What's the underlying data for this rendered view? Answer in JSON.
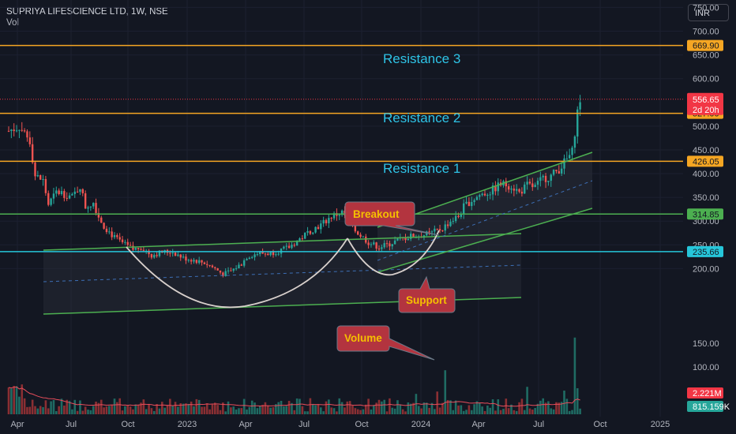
{
  "header": {
    "title": "SUPRIYA LIFESCIENCE LTD, 1W, NSE",
    "sub": "Vol",
    "currency": "INR"
  },
  "annotations": {
    "resistance": [
      "Resistance 3",
      "Resistance 2",
      "Resistance 1"
    ],
    "breakout": "Breakout",
    "support": "Support",
    "volume": "Volume"
  },
  "chart_data": {
    "type": "candlestick",
    "title": "SUPRIYA LIFESCIENCE LTD, 1W, NSE",
    "ylim": [
      150,
      775
    ],
    "y_ticks": [
      "750.00",
      "700.00",
      "650.00",
      "600.00",
      "500.00",
      "450.00",
      "400.00",
      "350.00",
      "300.00",
      "250.00",
      "200.00"
    ],
    "x_ticks": [
      "Apr",
      "Jul",
      "Oct",
      "2023",
      "Apr",
      "Jul",
      "Oct",
      "2024",
      "Apr",
      "Jul",
      "Oct",
      "2025"
    ],
    "volume_ticks": [
      "150.00",
      "100.00",
      "50.00"
    ],
    "volume_ylim": [
      0,
      165
    ],
    "levels": [
      {
        "value": 669.9,
        "label": "669.90",
        "color": "#f5a623"
      },
      {
        "value": 527.0,
        "label": "527.00",
        "color": "#f5a623"
      },
      {
        "value": 426.05,
        "label": "426.05",
        "color": "#f5a623"
      },
      {
        "value": 314.85,
        "label": "314.85",
        "color": "#4caf50"
      },
      {
        "value": 235.66,
        "label": "235.66",
        "color": "#26c6da"
      }
    ],
    "last_price": {
      "value": 556.65,
      "label": "556.65",
      "countdown": "2d 20h",
      "color": "#f23645"
    },
    "volume_labels": [
      {
        "label": "2.221M",
        "color": "#f23645"
      },
      {
        "label": "815.159K",
        "color": "#26a69a"
      }
    ],
    "close_path": [
      [
        0,
        490
      ],
      [
        4,
        500
      ],
      [
        8,
        470
      ],
      [
        10,
        395
      ],
      [
        13,
        385
      ],
      [
        15,
        335
      ],
      [
        18,
        360
      ],
      [
        20,
        360
      ],
      [
        24,
        350
      ],
      [
        27,
        375
      ],
      [
        29,
        330
      ],
      [
        32,
        340
      ],
      [
        34,
        310
      ],
      [
        36,
        290
      ],
      [
        40,
        265
      ],
      [
        44,
        250
      ],
      [
        47,
        240
      ],
      [
        50,
        245
      ],
      [
        54,
        228
      ],
      [
        58,
        235
      ],
      [
        62,
        235
      ],
      [
        66,
        222
      ],
      [
        70,
        218
      ],
      [
        74,
        212
      ],
      [
        78,
        200
      ],
      [
        81,
        188
      ],
      [
        84,
        195
      ],
      [
        88,
        210
      ],
      [
        90,
        225
      ],
      [
        94,
        232
      ],
      [
        98,
        232
      ],
      [
        102,
        237
      ],
      [
        106,
        245
      ],
      [
        110,
        262
      ],
      [
        114,
        280
      ],
      [
        118,
        292
      ],
      [
        122,
        310
      ],
      [
        126,
        318
      ],
      [
        128,
        305
      ],
      [
        130,
        285
      ],
      [
        133,
        270
      ],
      [
        136,
        255
      ],
      [
        140,
        245
      ],
      [
        144,
        252
      ],
      [
        148,
        262
      ],
      [
        152,
        268
      ],
      [
        156,
        270
      ],
      [
        160,
        275
      ],
      [
        164,
        285
      ],
      [
        167,
        300
      ],
      [
        170,
        310
      ],
      [
        172,
        330
      ],
      [
        174,
        340
      ],
      [
        178,
        355
      ],
      [
        182,
        362
      ],
      [
        186,
        378
      ],
      [
        190,
        375
      ],
      [
        193,
        360
      ],
      [
        196,
        375
      ],
      [
        199,
        372
      ],
      [
        202,
        390
      ],
      [
        205,
        395
      ],
      [
        208,
        410
      ],
      [
        211,
        430
      ],
      [
        213,
        445
      ],
      [
        214,
        490
      ],
      [
        215,
        530
      ],
      [
        216,
        557
      ]
    ]
  }
}
